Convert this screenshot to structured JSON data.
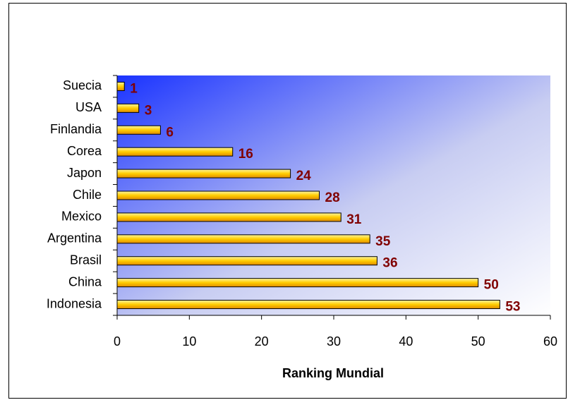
{
  "chart_data": {
    "type": "bar",
    "orientation": "horizontal",
    "x_label": "Ranking Mundial",
    "categories": [
      "Suecia",
      "USA",
      "Finlandia",
      "Corea",
      "Japon",
      "Chile",
      "Mexico",
      "Argentina",
      "Brasil",
      "China",
      "Indonesia"
    ],
    "values": [
      1,
      3,
      6,
      16,
      24,
      28,
      31,
      35,
      36,
      50,
      53
    ],
    "color": "#ffcc00",
    "label_color": "#800000",
    "xlim": [
      0,
      60
    ],
    "xticks": [
      0,
      10,
      20,
      30,
      40,
      50,
      60
    ],
    "grid": false
  }
}
